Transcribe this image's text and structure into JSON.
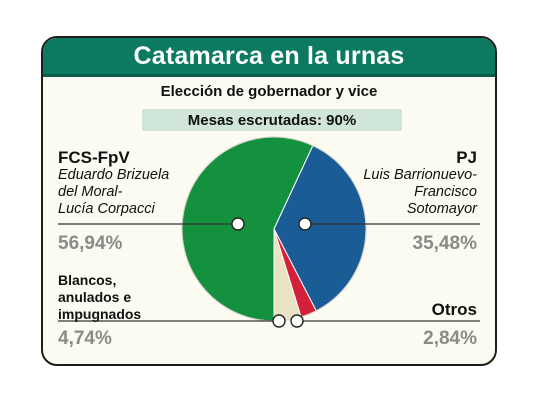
{
  "header": {
    "title": "Catamarca en la urnas"
  },
  "subtitle": "Elección de gobernador y vice",
  "mesas": "Mesas escrutadas: 90%",
  "labels": {
    "fcs_party": "FCS-FpV",
    "fcs_cand_1": "Eduardo Brizuela",
    "fcs_cand_2": "del Moral-",
    "fcs_cand_3": "Lucía Corpacci",
    "fcs_pct": "56,94%",
    "pj_party": "PJ",
    "pj_cand_1": "Luis Barrionuevo-",
    "pj_cand_2": "Francisco",
    "pj_cand_3": "Sotomayor",
    "pj_pct": "35,48%",
    "blancos_1": "Blancos,",
    "blancos_2": "anulados e",
    "blancos_3": "impugnados",
    "blancos_pct": "4,74%",
    "otros_name": "Otros",
    "otros_pct": "2,84%"
  },
  "chart_data": {
    "type": "pie",
    "start_angle_deg": 180,
    "direction": "clockwise",
    "slices": [
      {
        "label": "FCS-FpV",
        "value": 56.94,
        "color": "#13913f"
      },
      {
        "label": "PJ",
        "value": 35.48,
        "color": "#1a5d96"
      },
      {
        "label": "Otros",
        "value": 2.84,
        "color": "#d41f3a"
      },
      {
        "label": "Blancos, anulados e impugnados",
        "value": 4.74,
        "color": "#e9e3c3"
      }
    ]
  }
}
